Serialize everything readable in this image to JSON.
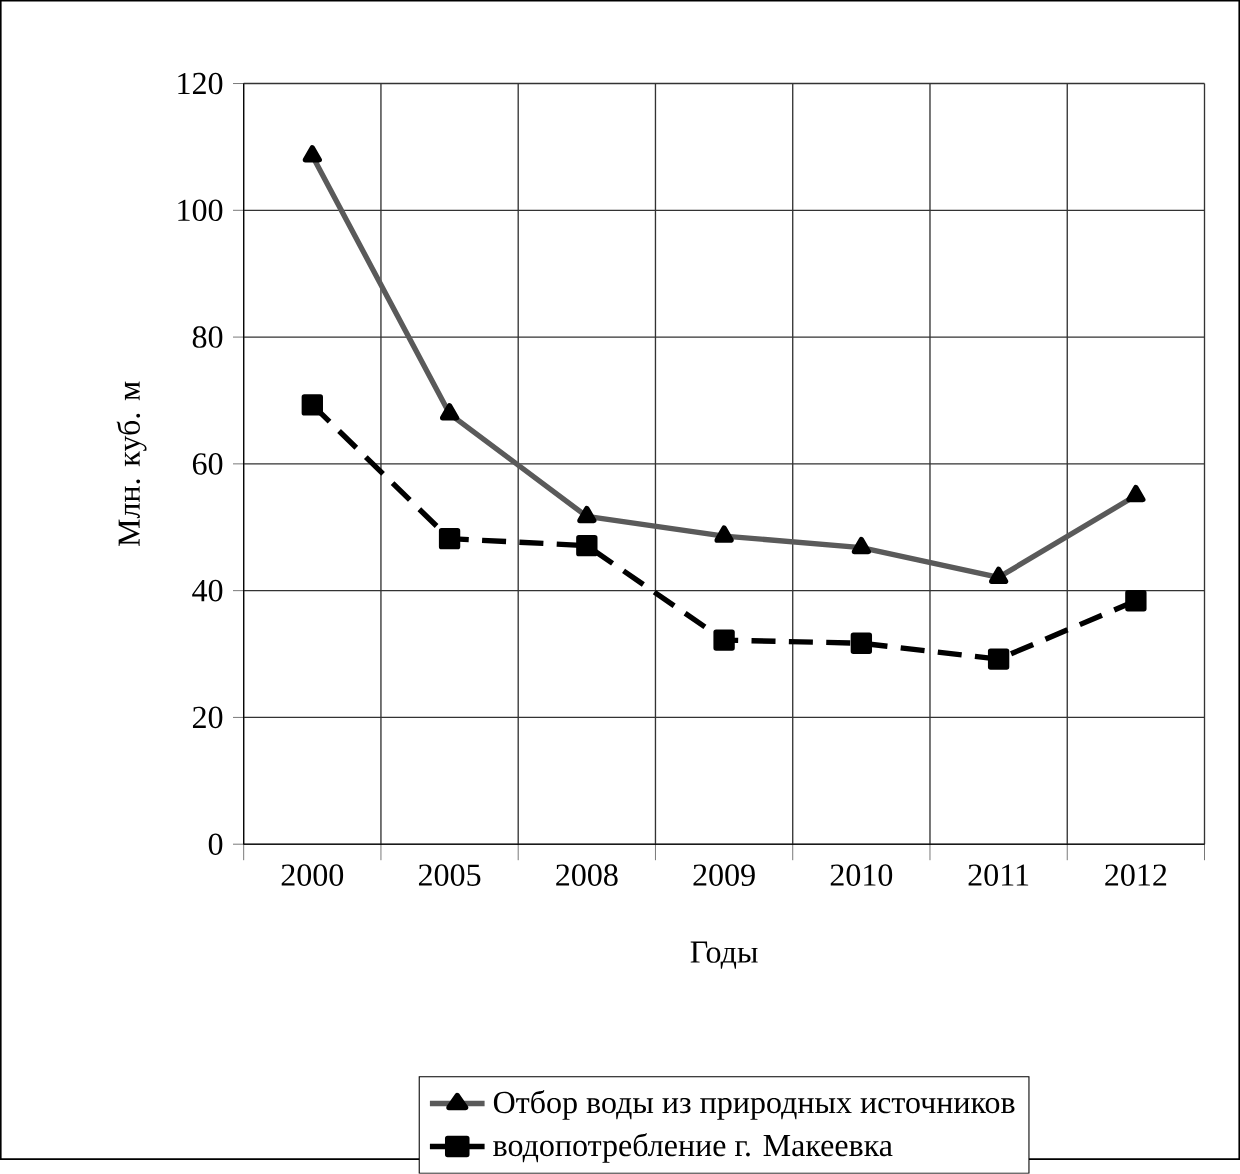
{
  "chart_data": {
    "type": "line",
    "categories": [
      "2000",
      "2005",
      "2008",
      "2009",
      "2010",
      "2011",
      "2012"
    ],
    "xlabel": "Годы",
    "ylabel": "Млн. куб. м",
    "ylim": [
      0,
      120
    ],
    "yticks": [
      0,
      20,
      40,
      60,
      80,
      100,
      120
    ],
    "grid": true,
    "legend": "bottom",
    "series": [
      {
        "name": "Отбор воды из природных источников",
        "color": "#5a5a5a",
        "marker": "triangle",
        "line_style": "solid",
        "values": [
          108.6,
          67.9,
          51.7,
          48.6,
          46.8,
          42.1,
          55.0
        ]
      },
      {
        "name": "водопотребление г. Макеевка",
        "color": "#000000",
        "marker": "square",
        "line_style": "dashed",
        "values": [
          69.3,
          48.2,
          47.1,
          32.2,
          31.7,
          29.2,
          38.4
        ]
      }
    ]
  }
}
